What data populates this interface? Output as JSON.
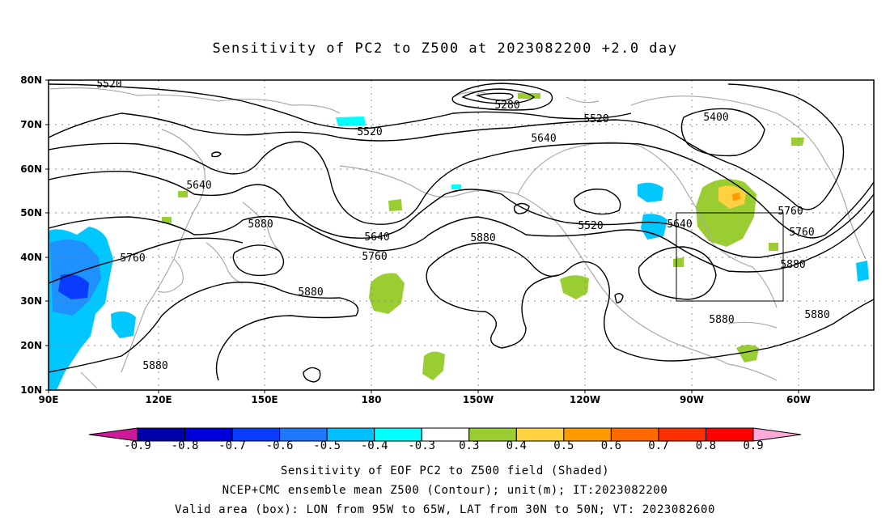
{
  "title": "Sensitivity of PC2 to Z500 at 2023082200 +2.0 day",
  "axes": {
    "lat_labels": [
      "80N",
      "70N",
      "60N",
      "50N",
      "40N",
      "30N",
      "20N",
      "10N"
    ],
    "lon_labels": [
      "90E",
      "120E",
      "150E",
      "180",
      "150W",
      "120W",
      "90W",
      "60W"
    ]
  },
  "contour_labels": [
    "5520",
    "5280",
    "5520",
    "5400",
    "5520",
    "5640",
    "5640",
    "5880",
    "5640",
    "5760",
    "5880",
    "5760",
    "5880",
    "5520",
    "5640",
    "5760",
    "5760",
    "5880",
    "5880",
    "5880",
    "5880"
  ],
  "valid_box": {
    "lon_from": "95W",
    "lon_to": "65W",
    "lat_from": "30N",
    "lat_to": "50N"
  },
  "colorbar": {
    "labels": [
      "-0.9",
      "-0.8",
      "-0.7",
      "-0.6",
      "-0.5",
      "-0.4",
      "-0.3",
      "0.3",
      "0.4",
      "0.5",
      "0.6",
      "0.7",
      "0.8",
      "0.9"
    ],
    "colors": [
      "#0000aa",
      "#0000dd",
      "#0a3cff",
      "#1e78ff",
      "#00bfff",
      "#00ffff",
      "#ffffff",
      "#9acd32",
      "#ffd040",
      "#ff9a00",
      "#ff6a00",
      "#ff3000",
      "#ff0000"
    ],
    "left_arrow_color": "#cc1a9a",
    "right_arrow_color": "#ffaad8"
  },
  "captions": [
    "Sensitivity of EOF PC2 to Z500 field (Shaded)",
    "NCEP+CMC ensemble mean Z500 (Contour); unit(m); IT:2023082200",
    "Valid area (box): LON from 95W to 65W, LAT from 30N to 50N; VT: 2023082600"
  ]
}
